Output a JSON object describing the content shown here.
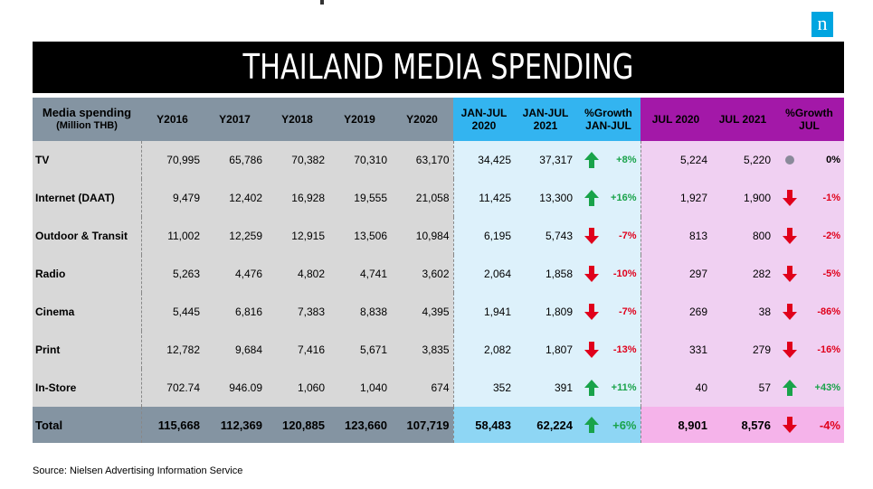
{
  "title": "THAILAND  MEDIA SPENDING",
  "logo_letter": "n",
  "source": "Source: Nielsen Advertising Information Service",
  "colors": {
    "header_grey": "#8494a2",
    "header_blue": "#33b4f0",
    "header_pink": "#a318a8",
    "positive": "#19a34a",
    "negative": "#e0001b"
  },
  "chart_data": {
    "type": "table",
    "title": "THAILAND  MEDIA SPENDING",
    "headers": {
      "label": "Media spending",
      "label_unit": "(Million THB)",
      "years": [
        "Y2016",
        "Y2017",
        "Y2018",
        "Y2019",
        "Y2020"
      ],
      "ytd_2020": [
        "JAN-JUL",
        "2020"
      ],
      "ytd_2021": [
        "JAN-JUL",
        "2021"
      ],
      "ytd_growth": [
        "%Growth",
        "JAN-JUL"
      ],
      "jul_2020": "JUL 2020",
      "jul_2021": "JUL 2021",
      "jul_growth": [
        "%Growth",
        "JUL"
      ]
    },
    "rows": [
      {
        "media": "TV",
        "y2016": "70,995",
        "y2017": "65,786",
        "y2018": "70,382",
        "y2019": "70,310",
        "y2020": "63,170",
        "ytd2020": "34,425",
        "ytd2021": "37,317",
        "ytd_growth": "+8%",
        "ytd_dir": "up",
        "jul2020": "5,224",
        "jul2021": "5,220",
        "jul_growth": "0%",
        "jul_dir": "flat"
      },
      {
        "media": "Internet (DAAT)",
        "y2016": "9,479",
        "y2017": "12,402",
        "y2018": "16,928",
        "y2019": "19,555",
        "y2020": "21,058",
        "ytd2020": "11,425",
        "ytd2021": "13,300",
        "ytd_growth": "+16%",
        "ytd_dir": "up",
        "jul2020": "1,927",
        "jul2021": "1,900",
        "jul_growth": "-1%",
        "jul_dir": "down"
      },
      {
        "media": "Outdoor & Transit",
        "y2016": "11,002",
        "y2017": "12,259",
        "y2018": "12,915",
        "y2019": "13,506",
        "y2020": "10,984",
        "ytd2020": "6,195",
        "ytd2021": "5,743",
        "ytd_growth": "-7%",
        "ytd_dir": "down",
        "jul2020": "813",
        "jul2021": "800",
        "jul_growth": "-2%",
        "jul_dir": "down"
      },
      {
        "media": "Radio",
        "y2016": "5,263",
        "y2017": "4,476",
        "y2018": "4,802",
        "y2019": "4,741",
        "y2020": "3,602",
        "ytd2020": "2,064",
        "ytd2021": "1,858",
        "ytd_growth": "-10%",
        "ytd_dir": "down",
        "jul2020": "297",
        "jul2021": "282",
        "jul_growth": "-5%",
        "jul_dir": "down"
      },
      {
        "media": "Cinema",
        "y2016": "5,445",
        "y2017": "6,816",
        "y2018": "7,383",
        "y2019": "8,838",
        "y2020": "4,395",
        "ytd2020": "1,941",
        "ytd2021": "1,809",
        "ytd_growth": "-7%",
        "ytd_dir": "down",
        "jul2020": "269",
        "jul2021": "38",
        "jul_growth": "-86%",
        "jul_dir": "down"
      },
      {
        "media": "Print",
        "y2016": "12,782",
        "y2017": "9,684",
        "y2018": "7,416",
        "y2019": "5,671",
        "y2020": "3,835",
        "ytd2020": "2,082",
        "ytd2021": "1,807",
        "ytd_growth": "-13%",
        "ytd_dir": "down",
        "jul2020": "331",
        "jul2021": "279",
        "jul_growth": "-16%",
        "jul_dir": "down"
      },
      {
        "media": "In-Store",
        "y2016": "702.74",
        "y2017": "946.09",
        "y2018": "1,060",
        "y2019": "1,040",
        "y2020": "674",
        "ytd2020": "352",
        "ytd2021": "391",
        "ytd_growth": "+11%",
        "ytd_dir": "up",
        "jul2020": "40",
        "jul2021": "57",
        "jul_growth": "+43%",
        "jul_dir": "up"
      }
    ],
    "total": {
      "media": "Total",
      "y2016": "115,668",
      "y2017": "112,369",
      "y2018": "120,885",
      "y2019": "123,660",
      "y2020": "107,719",
      "ytd2020": "58,483",
      "ytd2021": "62,224",
      "ytd_growth": "+6%",
      "ytd_dir": "up",
      "jul2020": "8,901",
      "jul2021": "8,576",
      "jul_growth": "-4%",
      "jul_dir": "down"
    }
  }
}
